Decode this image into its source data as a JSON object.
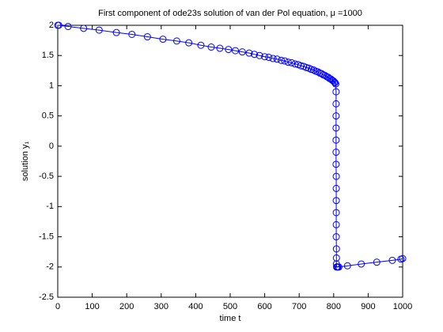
{
  "chart_data": {
    "type": "line",
    "title": "First component of ode23s solution of van der Pol equation, μ =1000",
    "xlabel": "time t",
    "ylabel": "solution y₁",
    "x": [
      0,
      3,
      30,
      75,
      120,
      170,
      215,
      260,
      305,
      345,
      380,
      415,
      445,
      470,
      495,
      515,
      535,
      555,
      570,
      585,
      600,
      612,
      624,
      636,
      648,
      658,
      668,
      678,
      688,
      697,
      705,
      713,
      721,
      728,
      735,
      742,
      748,
      754,
      760,
      765,
      770,
      775,
      780,
      784,
      788,
      792,
      796,
      799,
      802,
      804,
      806,
      807,
      807,
      807,
      807,
      807,
      807,
      807,
      807.5,
      807.5,
      807.5,
      807.5,
      807.5,
      807.5,
      808,
      808,
      808,
      808.5,
      810,
      812,
      815,
      840,
      880,
      925,
      970,
      995,
      1000
    ],
    "series": [
      {
        "color": "#0000ff",
        "values": [
          2.0,
          2.0,
          1.98,
          1.95,
          1.92,
          1.88,
          1.85,
          1.81,
          1.77,
          1.74,
          1.71,
          1.67,
          1.64,
          1.62,
          1.6,
          1.58,
          1.56,
          1.54,
          1.52,
          1.5,
          1.48,
          1.47,
          1.45,
          1.44,
          1.42,
          1.41,
          1.39,
          1.38,
          1.36,
          1.35,
          1.33,
          1.32,
          1.3,
          1.29,
          1.27,
          1.26,
          1.24,
          1.23,
          1.21,
          1.2,
          1.18,
          1.17,
          1.15,
          1.14,
          1.12,
          1.11,
          1.09,
          1.08,
          1.06,
          1.05,
          1.03,
          0.9,
          0.7,
          0.5,
          0.3,
          0.1,
          -0.1,
          -0.3,
          -0.5,
          -0.7,
          -0.9,
          -1.1,
          -1.3,
          -1.5,
          -1.7,
          -1.85,
          -1.95,
          -2.0,
          -2.0,
          -2.0,
          -2.0,
          -1.98,
          -1.95,
          -1.92,
          -1.89,
          -1.87,
          -1.86
        ]
      }
    ],
    "xlim": [
      0,
      1000
    ],
    "xticks": [
      0,
      100,
      200,
      300,
      400,
      500,
      600,
      700,
      800,
      900,
      1000
    ],
    "ylim": [
      -2.5,
      2
    ],
    "yticks": [
      -2.5,
      -2,
      -1.5,
      -1,
      -0.5,
      0,
      0.5,
      1,
      1.5,
      2
    ],
    "grid": false
  }
}
